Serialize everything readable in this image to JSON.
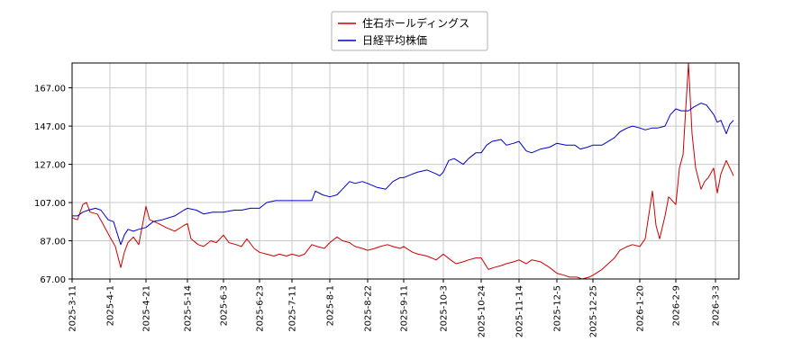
{
  "chart_data": {
    "type": "line",
    "title": "",
    "xlabel": "",
    "ylabel": "",
    "grid": true,
    "legend_position": "top-center",
    "ylim": [
      67.0,
      180.0
    ],
    "xlim": [
      "2025-03-11",
      "2026-03-16"
    ],
    "y_ticks": [
      "67.00",
      "87.00",
      "107.00",
      "127.00",
      "147.00",
      "167.00"
    ],
    "x_ticks": [
      "2025-3-11",
      "2025-4-1",
      "2025-4-21",
      "2025-5-14",
      "2025-6-3",
      "2025-6-23",
      "2025-7-11",
      "2025-8-1",
      "2025-8-22",
      "2025-9-11",
      "2025-10-3",
      "2025-10-24",
      "2025-11-14",
      "2025-12-5",
      "2025-12-25",
      "2026-1-20",
      "2026-2-9",
      "2026-3-3"
    ],
    "x_tick_dates": [
      "2025-03-11",
      "2025-04-01",
      "2025-04-21",
      "2025-05-14",
      "2025-06-03",
      "2025-06-23",
      "2025-07-11",
      "2025-08-01",
      "2025-08-22",
      "2025-09-11",
      "2025-10-03",
      "2025-10-24",
      "2025-11-14",
      "2025-12-05",
      "2025-12-25",
      "2026-01-20",
      "2026-02-09",
      "2026-03-03"
    ],
    "series": [
      {
        "name": "住石ホールディングス",
        "color": "#cc0000",
        "points": [
          [
            "2025-03-11",
            99
          ],
          [
            "2025-03-14",
            98
          ],
          [
            "2025-03-17",
            106
          ],
          [
            "2025-03-19",
            107
          ],
          [
            "2025-03-21",
            102
          ],
          [
            "2025-03-25",
            101
          ],
          [
            "2025-03-28",
            96
          ],
          [
            "2025-04-01",
            89
          ],
          [
            "2025-04-04",
            84
          ],
          [
            "2025-04-07",
            73
          ],
          [
            "2025-04-09",
            81
          ],
          [
            "2025-04-11",
            86
          ],
          [
            "2025-04-14",
            89
          ],
          [
            "2025-04-17",
            85
          ],
          [
            "2025-04-21",
            105
          ],
          [
            "2025-04-23",
            98
          ],
          [
            "2025-04-28",
            96
          ],
          [
            "2025-05-02",
            94
          ],
          [
            "2025-05-07",
            92
          ],
          [
            "2025-05-12",
            95
          ],
          [
            "2025-05-14",
            96
          ],
          [
            "2025-05-16",
            88
          ],
          [
            "2025-05-20",
            85
          ],
          [
            "2025-05-23",
            84
          ],
          [
            "2025-05-27",
            87
          ],
          [
            "2025-05-30",
            86
          ],
          [
            "2025-06-03",
            90
          ],
          [
            "2025-06-06",
            86
          ],
          [
            "2025-06-10",
            85
          ],
          [
            "2025-06-13",
            84
          ],
          [
            "2025-06-16",
            88
          ],
          [
            "2025-06-20",
            83
          ],
          [
            "2025-06-23",
            81
          ],
          [
            "2025-06-27",
            80
          ],
          [
            "2025-07-01",
            79
          ],
          [
            "2025-07-04",
            80
          ],
          [
            "2025-07-08",
            79
          ],
          [
            "2025-07-11",
            80
          ],
          [
            "2025-07-15",
            79
          ],
          [
            "2025-07-18",
            80
          ],
          [
            "2025-07-22",
            85
          ],
          [
            "2025-07-25",
            84
          ],
          [
            "2025-07-29",
            83
          ],
          [
            "2025-08-01",
            86
          ],
          [
            "2025-08-05",
            89
          ],
          [
            "2025-08-08",
            87
          ],
          [
            "2025-08-12",
            86
          ],
          [
            "2025-08-15",
            84
          ],
          [
            "2025-08-19",
            83
          ],
          [
            "2025-08-22",
            82
          ],
          [
            "2025-08-26",
            83
          ],
          [
            "2025-08-29",
            84
          ],
          [
            "2025-09-02",
            85
          ],
          [
            "2025-09-05",
            84
          ],
          [
            "2025-09-09",
            83
          ],
          [
            "2025-09-11",
            84
          ],
          [
            "2025-09-16",
            81
          ],
          [
            "2025-09-19",
            80
          ],
          [
            "2025-09-24",
            79
          ],
          [
            "2025-09-29",
            77
          ],
          [
            "2025-10-03",
            80
          ],
          [
            "2025-10-07",
            77
          ],
          [
            "2025-10-10",
            75
          ],
          [
            "2025-10-14",
            76
          ],
          [
            "2025-10-17",
            77
          ],
          [
            "2025-10-21",
            78
          ],
          [
            "2025-10-24",
            78
          ],
          [
            "2025-10-28",
            72
          ],
          [
            "2025-10-31",
            73
          ],
          [
            "2025-11-04",
            74
          ],
          [
            "2025-11-07",
            75
          ],
          [
            "2025-11-11",
            76
          ],
          [
            "2025-11-14",
            77
          ],
          [
            "2025-11-18",
            75
          ],
          [
            "2025-11-21",
            77
          ],
          [
            "2025-11-26",
            76
          ],
          [
            "2025-12-01",
            73
          ],
          [
            "2025-12-05",
            70
          ],
          [
            "2025-12-09",
            69
          ],
          [
            "2025-12-12",
            68
          ],
          [
            "2025-12-16",
            68
          ],
          [
            "2025-12-19",
            67
          ],
          [
            "2025-12-23",
            68
          ],
          [
            "2025-12-25",
            69
          ],
          [
            "2025-12-30",
            72
          ],
          [
            "2026-01-06",
            78
          ],
          [
            "2026-01-09",
            82
          ],
          [
            "2026-01-13",
            84
          ],
          [
            "2026-01-16",
            85
          ],
          [
            "2026-01-20",
            84
          ],
          [
            "2026-01-23",
            88
          ],
          [
            "2026-01-27",
            113
          ],
          [
            "2026-01-29",
            95
          ],
          [
            "2026-01-31",
            88
          ],
          [
            "2026-02-03",
            100
          ],
          [
            "2026-02-05",
            110
          ],
          [
            "2026-02-09",
            106
          ],
          [
            "2026-02-11",
            125
          ],
          [
            "2026-02-13",
            132
          ],
          [
            "2026-02-16",
            180
          ],
          [
            "2026-02-18",
            143
          ],
          [
            "2026-02-20",
            125
          ],
          [
            "2026-02-23",
            114
          ],
          [
            "2026-02-25",
            118
          ],
          [
            "2026-02-27",
            120
          ],
          [
            "2026-03-02",
            125
          ],
          [
            "2026-03-04",
            112
          ],
          [
            "2026-03-06",
            122
          ],
          [
            "2026-03-09",
            129
          ],
          [
            "2026-03-11",
            125
          ],
          [
            "2026-03-13",
            121
          ]
        ]
      },
      {
        "name": "日経平均株価",
        "color": "#0000cc",
        "points": [
          [
            "2025-03-11",
            100
          ],
          [
            "2025-03-14",
            100
          ],
          [
            "2025-03-17",
            102
          ],
          [
            "2025-03-20",
            103
          ],
          [
            "2025-03-24",
            104
          ],
          [
            "2025-03-27",
            103
          ],
          [
            "2025-03-31",
            98
          ],
          [
            "2025-04-03",
            97
          ],
          [
            "2025-04-07",
            85
          ],
          [
            "2025-04-09",
            90
          ],
          [
            "2025-04-11",
            93
          ],
          [
            "2025-04-14",
            92
          ],
          [
            "2025-04-17",
            93
          ],
          [
            "2025-04-21",
            94
          ],
          [
            "2025-04-25",
            97
          ],
          [
            "2025-04-30",
            98
          ],
          [
            "2025-05-07",
            100
          ],
          [
            "2025-05-12",
            103
          ],
          [
            "2025-05-14",
            104
          ],
          [
            "2025-05-19",
            103
          ],
          [
            "2025-05-23",
            101
          ],
          [
            "2025-05-28",
            102
          ],
          [
            "2025-06-03",
            102
          ],
          [
            "2025-06-09",
            103
          ],
          [
            "2025-06-13",
            103
          ],
          [
            "2025-06-18",
            104
          ],
          [
            "2025-06-23",
            104
          ],
          [
            "2025-06-27",
            107
          ],
          [
            "2025-07-02",
            108
          ],
          [
            "2025-07-07",
            108
          ],
          [
            "2025-07-11",
            108
          ],
          [
            "2025-07-16",
            108
          ],
          [
            "2025-07-22",
            108
          ],
          [
            "2025-07-24",
            113
          ],
          [
            "2025-07-28",
            111
          ],
          [
            "2025-08-01",
            110
          ],
          [
            "2025-08-05",
            111
          ],
          [
            "2025-08-08",
            114
          ],
          [
            "2025-08-12",
            118
          ],
          [
            "2025-08-15",
            117
          ],
          [
            "2025-08-19",
            118
          ],
          [
            "2025-08-22",
            117
          ],
          [
            "2025-08-27",
            115
          ],
          [
            "2025-09-01",
            114
          ],
          [
            "2025-09-05",
            118
          ],
          [
            "2025-09-09",
            120
          ],
          [
            "2025-09-11",
            120
          ],
          [
            "2025-09-16",
            122
          ],
          [
            "2025-09-19",
            123
          ],
          [
            "2025-09-24",
            124
          ],
          [
            "2025-09-29",
            122
          ],
          [
            "2025-10-01",
            121
          ],
          [
            "2025-10-03",
            123
          ],
          [
            "2025-10-06",
            129
          ],
          [
            "2025-10-09",
            130
          ],
          [
            "2025-10-14",
            127
          ],
          [
            "2025-10-17",
            130
          ],
          [
            "2025-10-21",
            133
          ],
          [
            "2025-10-24",
            133
          ],
          [
            "2025-10-27",
            137
          ],
          [
            "2025-10-30",
            139
          ],
          [
            "2025-11-04",
            140
          ],
          [
            "2025-11-07",
            137
          ],
          [
            "2025-11-11",
            138
          ],
          [
            "2025-11-14",
            139
          ],
          [
            "2025-11-18",
            134
          ],
          [
            "2025-11-21",
            133
          ],
          [
            "2025-11-26",
            135
          ],
          [
            "2025-12-01",
            136
          ],
          [
            "2025-12-05",
            138
          ],
          [
            "2025-12-10",
            137
          ],
          [
            "2025-12-15",
            137
          ],
          [
            "2025-12-18",
            135
          ],
          [
            "2025-12-22",
            136
          ],
          [
            "2025-12-25",
            137
          ],
          [
            "2025-12-30",
            137
          ],
          [
            "2026-01-06",
            141
          ],
          [
            "2026-01-09",
            144
          ],
          [
            "2026-01-13",
            146
          ],
          [
            "2026-01-16",
            147
          ],
          [
            "2026-01-20",
            146
          ],
          [
            "2026-01-23",
            145
          ],
          [
            "2026-01-27",
            146
          ],
          [
            "2026-01-30",
            146
          ],
          [
            "2026-02-03",
            147
          ],
          [
            "2026-02-06",
            153
          ],
          [
            "2026-02-09",
            156
          ],
          [
            "2026-02-12",
            155
          ],
          [
            "2026-02-16",
            155
          ],
          [
            "2026-02-19",
            157
          ],
          [
            "2026-02-23",
            159
          ],
          [
            "2026-02-26",
            158
          ],
          [
            "2026-03-02",
            153
          ],
          [
            "2026-03-04",
            149
          ],
          [
            "2026-03-06",
            150
          ],
          [
            "2026-03-09",
            143
          ],
          [
            "2026-03-11",
            148
          ],
          [
            "2026-03-13",
            150
          ]
        ]
      }
    ]
  }
}
